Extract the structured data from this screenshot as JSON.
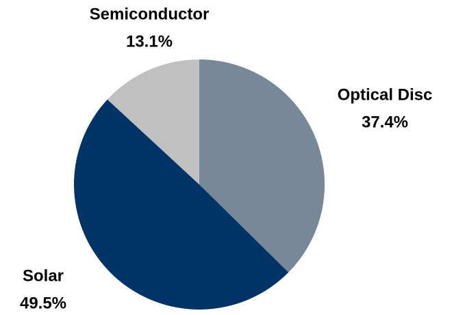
{
  "chart_data": {
    "type": "pie",
    "categories": [
      "Optical Disc",
      "Solar",
      "Semiconductor"
    ],
    "values": [
      37.4,
      49.5,
      13.1
    ],
    "value_labels": [
      "37.4%",
      "49.5%",
      "13.1%"
    ],
    "colors": [
      "#778899",
      "#003366",
      "#c0c0c0"
    ]
  }
}
